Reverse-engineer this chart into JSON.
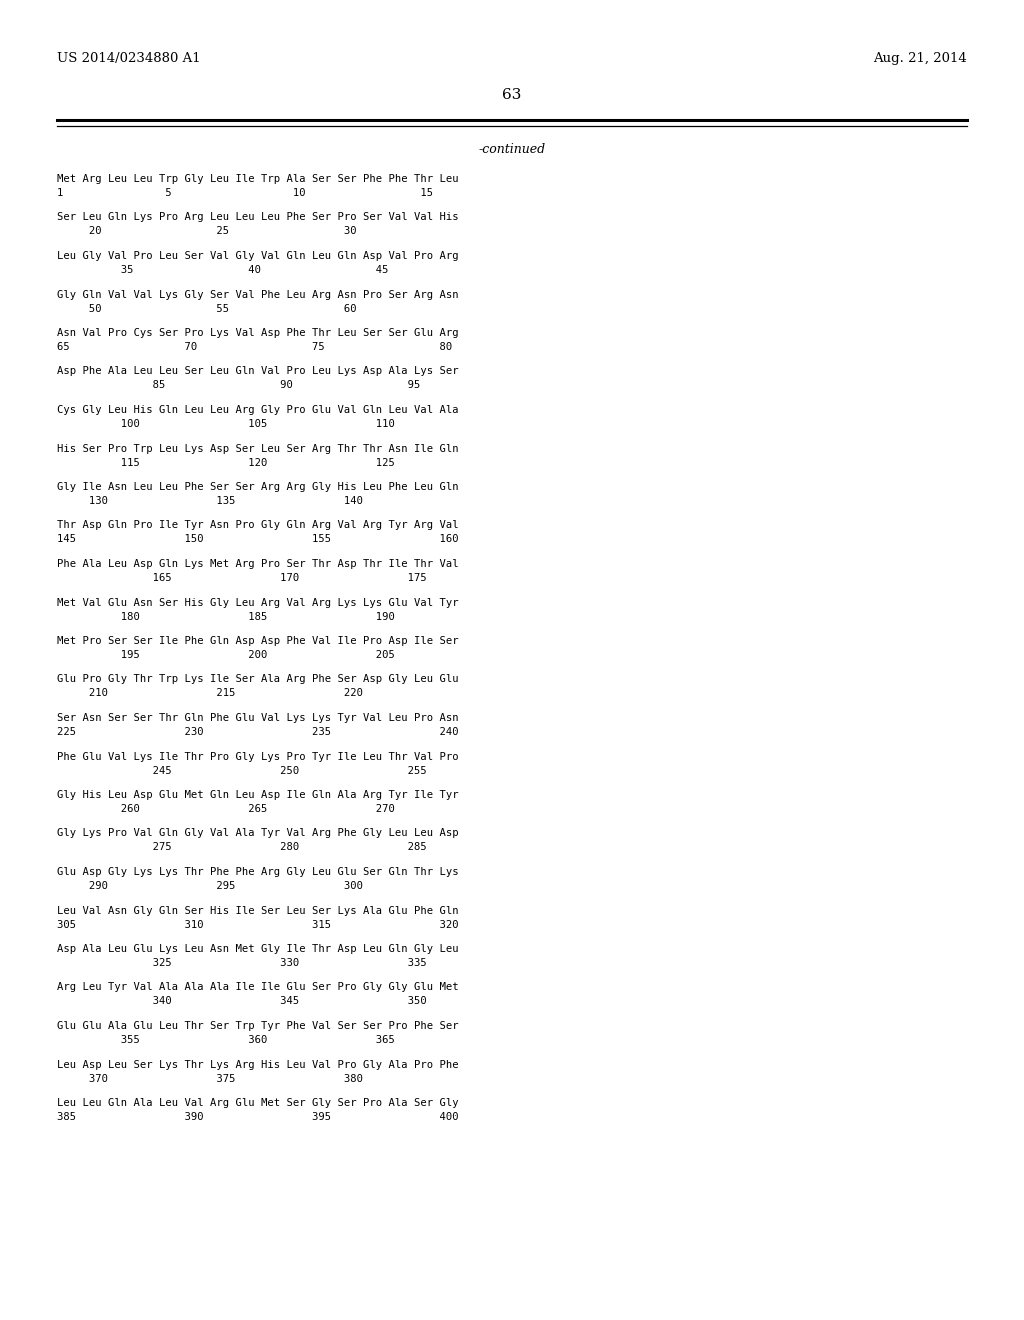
{
  "patent_number": "US 2014/0234880 A1",
  "date": "Aug. 21, 2014",
  "page_number": "63",
  "continued_label": "-continued",
  "sequences": [
    [
      "Met Arg Leu Leu Trp Gly Leu Ile Trp Ala Ser Ser Phe Phe Thr Leu",
      "1                5                   10                  15"
    ],
    [
      "Ser Leu Gln Lys Pro Arg Leu Leu Leu Phe Ser Pro Ser Val Val His",
      "     20                  25                  30"
    ],
    [
      "Leu Gly Val Pro Leu Ser Val Gly Val Gln Leu Gln Asp Val Pro Arg",
      "          35                  40                  45"
    ],
    [
      "Gly Gln Val Val Lys Gly Ser Val Phe Leu Arg Asn Pro Ser Arg Asn",
      "     50                  55                  60"
    ],
    [
      "Asn Val Pro Cys Ser Pro Lys Val Asp Phe Thr Leu Ser Ser Glu Arg",
      "65                  70                  75                  80"
    ],
    [
      "Asp Phe Ala Leu Leu Ser Leu Gln Val Pro Leu Lys Asp Ala Lys Ser",
      "               85                  90                  95"
    ],
    [
      "Cys Gly Leu His Gln Leu Leu Arg Gly Pro Glu Val Gln Leu Val Ala",
      "          100                 105                 110"
    ],
    [
      "His Ser Pro Trp Leu Lys Asp Ser Leu Ser Arg Thr Thr Asn Ile Gln",
      "          115                 120                 125"
    ],
    [
      "Gly Ile Asn Leu Leu Phe Ser Ser Arg Arg Gly His Leu Phe Leu Gln",
      "     130                 135                 140"
    ],
    [
      "Thr Asp Gln Pro Ile Tyr Asn Pro Gly Gln Arg Val Arg Tyr Arg Val",
      "145                 150                 155                 160"
    ],
    [
      "Phe Ala Leu Asp Gln Lys Met Arg Pro Ser Thr Asp Thr Ile Thr Val",
      "               165                 170                 175"
    ],
    [
      "Met Val Glu Asn Ser His Gly Leu Arg Val Arg Lys Lys Glu Val Tyr",
      "          180                 185                 190"
    ],
    [
      "Met Pro Ser Ser Ile Phe Gln Asp Asp Phe Val Ile Pro Asp Ile Ser",
      "          195                 200                 205"
    ],
    [
      "Glu Pro Gly Thr Trp Lys Ile Ser Ala Arg Phe Ser Asp Gly Leu Glu",
      "     210                 215                 220"
    ],
    [
      "Ser Asn Ser Ser Thr Gln Phe Glu Val Lys Lys Tyr Val Leu Pro Asn",
      "225                 230                 235                 240"
    ],
    [
      "Phe Glu Val Lys Ile Thr Pro Gly Lys Pro Tyr Ile Leu Thr Val Pro",
      "               245                 250                 255"
    ],
    [
      "Gly His Leu Asp Glu Met Gln Leu Asp Ile Gln Ala Arg Tyr Ile Tyr",
      "          260                 265                 270"
    ],
    [
      "Gly Lys Pro Val Gln Gly Val Ala Tyr Val Arg Phe Gly Leu Leu Asp",
      "               275                 280                 285"
    ],
    [
      "Glu Asp Gly Lys Lys Thr Phe Phe Arg Gly Leu Glu Ser Gln Thr Lys",
      "     290                 295                 300"
    ],
    [
      "Leu Val Asn Gly Gln Ser His Ile Ser Leu Ser Lys Ala Glu Phe Gln",
      "305                 310                 315                 320"
    ],
    [
      "Asp Ala Leu Glu Lys Leu Asn Met Gly Ile Thr Asp Leu Gln Gly Leu",
      "               325                 330                 335"
    ],
    [
      "Arg Leu Tyr Val Ala Ala Ala Ile Ile Glu Ser Pro Gly Gly Glu Met",
      "               340                 345                 350"
    ],
    [
      "Glu Glu Ala Glu Leu Thr Ser Trp Tyr Phe Val Ser Ser Pro Phe Ser",
      "          355                 360                 365"
    ],
    [
      "Leu Asp Leu Ser Lys Thr Lys Arg His Leu Val Pro Gly Ala Pro Phe",
      "     370                 375                 380"
    ],
    [
      "Leu Leu Gln Ala Leu Val Arg Glu Met Ser Gly Ser Pro Ala Ser Gly",
      "385                 390                 395                 400"
    ]
  ]
}
